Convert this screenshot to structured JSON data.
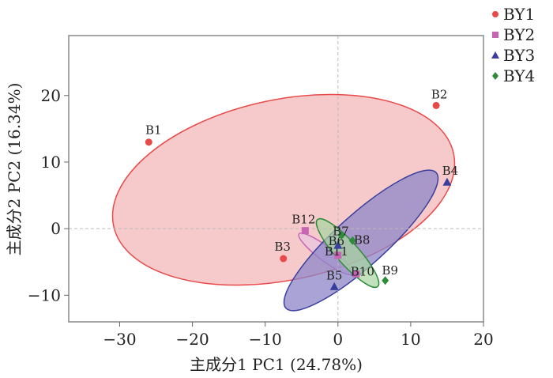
{
  "chart_data": {
    "type": "scatter",
    "xlabel": "主成分1 PC1 (24.78%)",
    "ylabel": "主成分2 PC2 (16.34%)",
    "xlim": [
      -37,
      20
    ],
    "ylim": [
      -14,
      29
    ],
    "x_ticks": [
      -30,
      -20,
      -10,
      0,
      10,
      20
    ],
    "y_ticks": [
      -10,
      0,
      10,
      20
    ],
    "grid": false,
    "reference_lines": "dashed at x=0 and y=0",
    "legend_position": "top-right outside",
    "series": [
      {
        "name": "BY1",
        "color": "#e84a4a",
        "fill": "#f2b3b3",
        "marker": "circle",
        "points": [
          {
            "label": "B1",
            "x": -26,
            "y": 13
          },
          {
            "label": "B2",
            "x": 13.5,
            "y": 18.5
          },
          {
            "label": "B3",
            "x": -7.5,
            "y": -4.5
          }
        ]
      },
      {
        "name": "BY2",
        "color": "#c864b4",
        "fill": "#e7c6e0",
        "marker": "square",
        "points": [
          {
            "label": "B12",
            "x": -4.5,
            "y": -0.3
          },
          {
            "label": "B11",
            "x": 0,
            "y": -4
          },
          {
            "label": "B10",
            "x": 2.5,
            "y": -6.8
          }
        ]
      },
      {
        "name": "BY3",
        "color": "#3a3f9e",
        "fill": "#8e86c8",
        "marker": "triangle",
        "points": [
          {
            "label": "B4",
            "x": 15,
            "y": 7
          },
          {
            "label": "B5",
            "x": -0.5,
            "y": -8.7
          },
          {
            "label": "B6",
            "x": 0,
            "y": -2.5
          }
        ]
      },
      {
        "name": "BY4",
        "color": "#2e8b3a",
        "fill": "#a6d5a0",
        "marker": "diamond",
        "points": [
          {
            "label": "B7",
            "x": 0.5,
            "y": -1
          },
          {
            "label": "B8",
            "x": 2,
            "y": -1.8
          },
          {
            "label": "B9",
            "x": 6.5,
            "y": -7.8
          }
        ]
      }
    ]
  }
}
